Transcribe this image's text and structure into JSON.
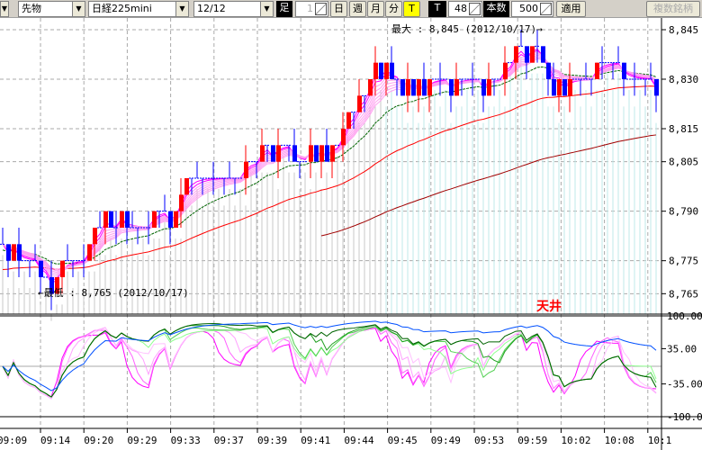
{
  "toolbar": {
    "market": "先物",
    "instrument": "日経225mini",
    "contract": "12/12",
    "bar_label": "足",
    "bar_count": "1",
    "day": "日",
    "week": "週",
    "month": "月",
    "minute": "分",
    "tick_toggle": "T",
    "tick_label": "T",
    "tick_value": "48",
    "count_label": "本数",
    "count_value": "500",
    "apply": "適用",
    "multi": "複数銘柄"
  },
  "chart_data": {
    "type": "candlestick",
    "price_ticks": [
      "8,845",
      "8,830",
      "8,815",
      "8,805",
      "8,790",
      "8,775",
      "8,765"
    ],
    "price_tick_values": [
      8845,
      8830,
      8815,
      8805,
      8790,
      8775,
      8765
    ],
    "osc_ticks": [
      "100.00",
      "35.00",
      "-35.00",
      "-100.0"
    ],
    "osc_tick_values": [
      100,
      35,
      -35,
      -100
    ],
    "time_labels": [
      "09:09",
      "09:14",
      "09:20",
      "09:29",
      "09:33",
      "09:37",
      "09:39",
      "09:41",
      "09:44",
      "09:45",
      "09:49",
      "09:53",
      "09:59",
      "10:02",
      "10:08",
      "10:1"
    ],
    "closes": [
      8780,
      8775,
      8780,
      8775,
      8775,
      8775,
      8775,
      8770,
      8770,
      8765,
      8770,
      8775,
      8775,
      8775,
      8775,
      8775,
      8780,
      8785,
      8785,
      8790,
      8785,
      8785,
      8790,
      8785,
      8785,
      8785,
      8785,
      8785,
      8790,
      8790,
      8790,
      8785,
      8790,
      8795,
      8800,
      8800,
      8800,
      8800,
      8800,
      8800,
      8800,
      8800,
      8800,
      8800,
      8800,
      8805,
      8805,
      8805,
      8810,
      8810,
      8805,
      8810,
      8810,
      8810,
      8805,
      8805,
      8805,
      8810,
      8805,
      8810,
      8805,
      8810,
      8810,
      8815,
      8820,
      8820,
      8825,
      8825,
      8830,
      8835,
      8830,
      8835,
      8830,
      8830,
      8825,
      8830,
      8825,
      8830,
      8825,
      8830,
      8830,
      8830,
      8830,
      8825,
      8830,
      8830,
      8830,
      8830,
      8830,
      8825,
      8830,
      8830,
      8830,
      8835,
      8835,
      8840,
      8840,
      8835,
      8840,
      8840,
      8835,
      8830,
      8825,
      8830,
      8825,
      8830,
      8830,
      8830,
      8830,
      8830,
      8835,
      8835,
      8835,
      8835,
      8835,
      8830,
      8830,
      8830,
      8830,
      8830,
      8830,
      8825
    ],
    "max_note": "最大 : 8,845 (2012/10/17)→",
    "min_note": "←最低 : 8,765 (2012/10/17)",
    "signal_label": "天井",
    "colors": {
      "up": "#ff0000",
      "down": "#0000ff",
      "ma_short": "#ff40ff",
      "ma_mid": "#006400",
      "ma_long": "#ff0000",
      "ma_vlong": "#a00000",
      "signal": "#ff0000"
    }
  }
}
